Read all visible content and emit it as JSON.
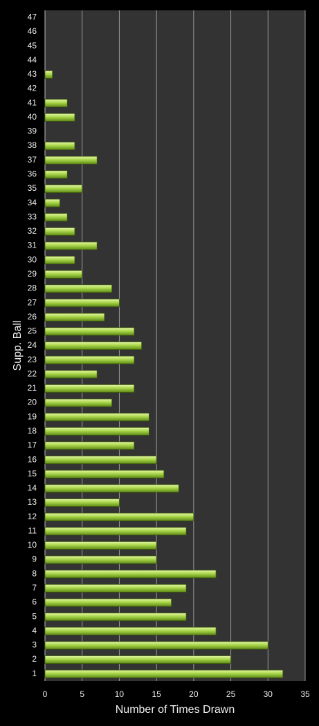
{
  "chart_data": {
    "type": "hbar",
    "y_label": "Supp. Ball",
    "x_label": "Number of Times Drawn",
    "categories": [
      "1",
      "2",
      "3",
      "4",
      "5",
      "6",
      "7",
      "8",
      "9",
      "10",
      "11",
      "12",
      "13",
      "14",
      "15",
      "16",
      "17",
      "18",
      "19",
      "20",
      "21",
      "22",
      "23",
      "24",
      "25",
      "26",
      "27",
      "28",
      "29",
      "30",
      "31",
      "32",
      "33",
      "34",
      "35",
      "36",
      "37",
      "38",
      "39",
      "40",
      "41",
      "42",
      "43",
      "44",
      "45",
      "46",
      "47"
    ],
    "values": [
      32,
      25,
      30,
      23,
      19,
      17,
      19,
      23,
      15,
      15,
      19,
      20,
      10,
      18,
      16,
      15,
      12,
      14,
      14,
      9,
      12,
      7,
      12,
      13,
      12,
      8,
      10,
      9,
      5,
      4,
      7,
      4,
      3,
      2,
      5,
      3,
      7,
      4,
      0,
      4,
      3,
      0,
      1,
      0,
      0,
      0,
      0
    ],
    "color": "#9acd32",
    "xlim": [
      0,
      35
    ],
    "xticks": [
      0,
      5,
      10,
      15,
      20,
      25,
      30,
      35
    ],
    "grid": true
  }
}
